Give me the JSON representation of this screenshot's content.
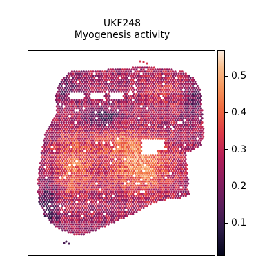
{
  "chart_data": {
    "type": "heatmap",
    "title": "UKF248",
    "subtitle": "Myogenesis activity",
    "xlabel": "",
    "ylabel": "",
    "colormap": "rocket",
    "colorbar": {
      "range": [
        0.01,
        0.57
      ],
      "ticks": [
        0.1,
        0.2,
        0.3,
        0.4,
        0.5
      ],
      "tick_labels": [
        "0.1",
        "0.2",
        "0.3",
        "0.4",
        "0.5"
      ]
    },
    "grid": false,
    "legend": "none",
    "colors": {
      "low": "#03051a",
      "mid": "#b41e58",
      "high": "#faebdd"
    }
  }
}
